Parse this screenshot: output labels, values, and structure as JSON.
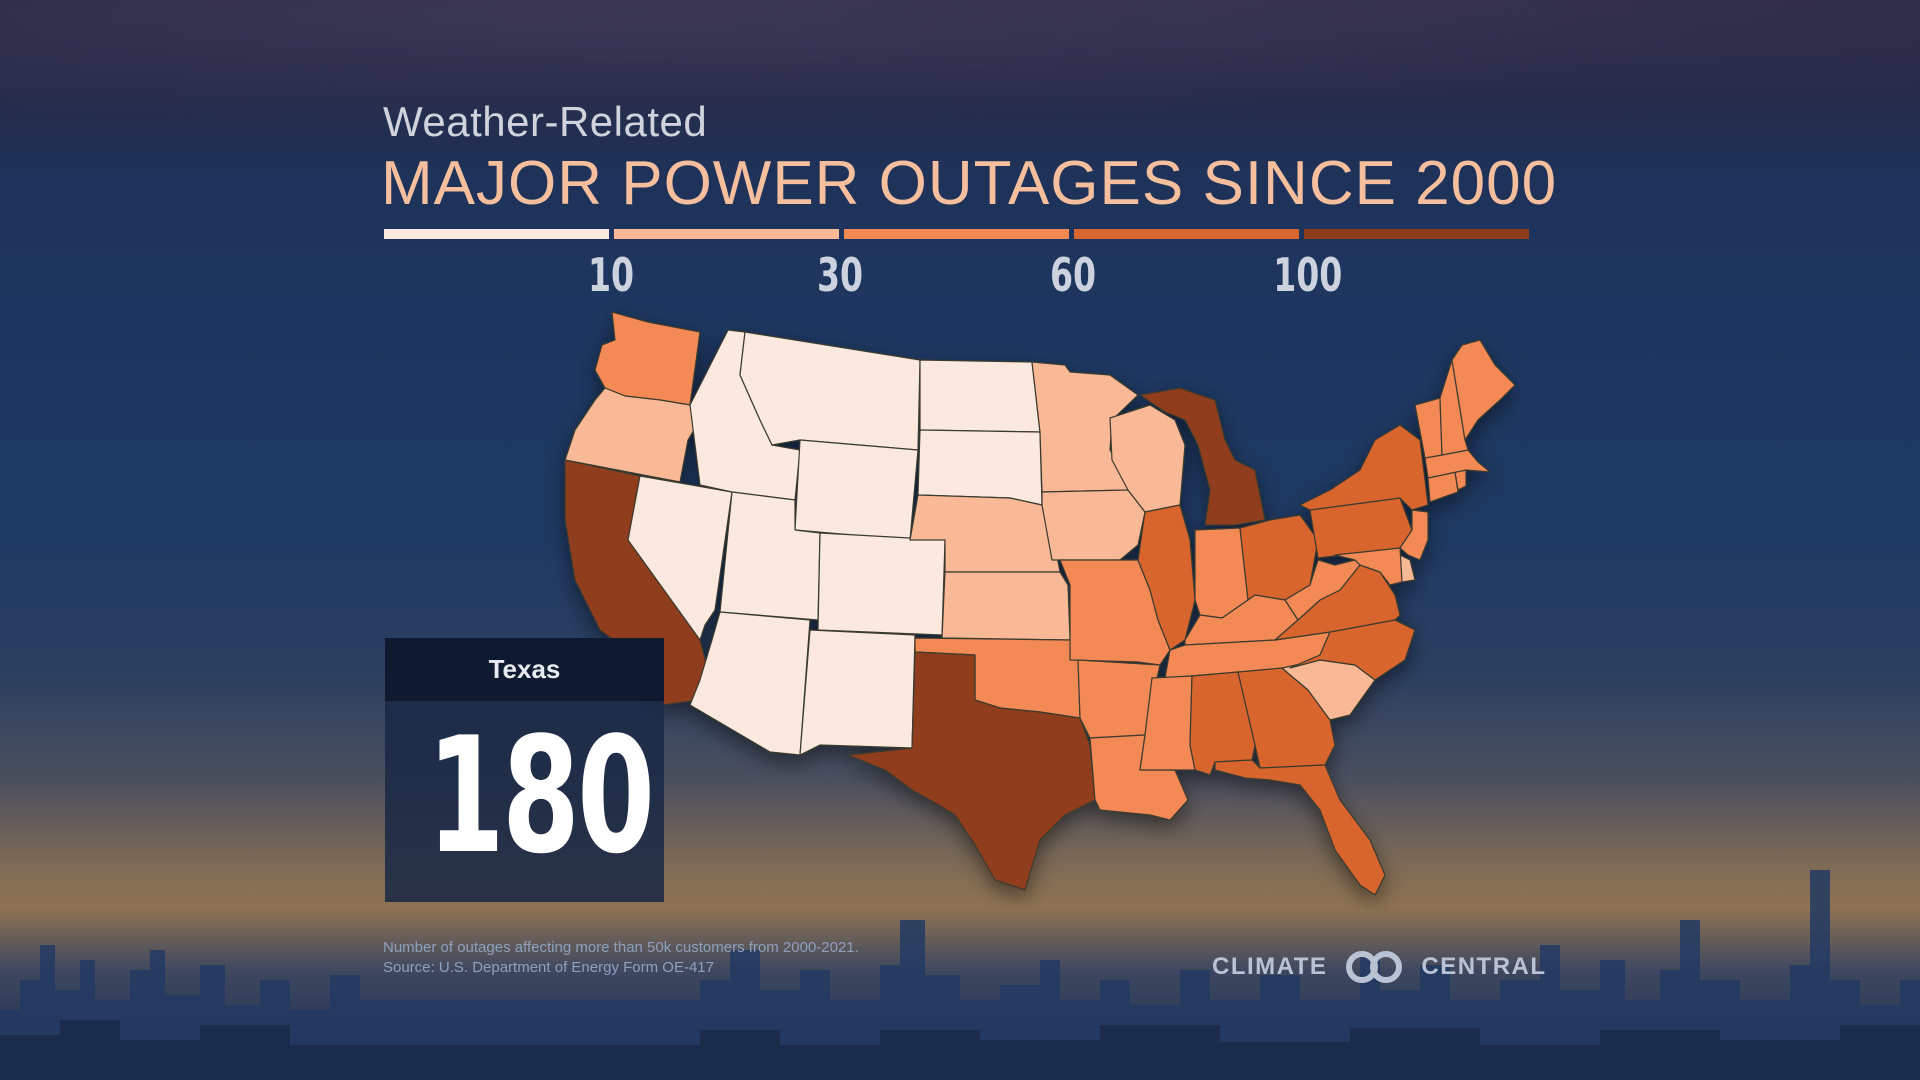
{
  "header": {
    "subtitle": "Weather-Related",
    "title": "MAJOR POWER OUTAGES SINCE 2000"
  },
  "legend": {
    "breaks": [
      "10",
      "30",
      "60",
      "100"
    ],
    "colors": [
      "#fbe9df",
      "#f9b996",
      "#f38a56",
      "#d9652f",
      "#8f3c1c"
    ]
  },
  "callout": {
    "state": "Texas",
    "value": "180"
  },
  "footnote": {
    "line1": "Number of outages affecting more than 50k customers from 2000-2021.",
    "line2": "Source: U.S. Department of Energy Form OE-417"
  },
  "logo": {
    "left_text": "CLIMATE",
    "right_text": "CENTRAL"
  },
  "map_data": {
    "color_class_by_state": {
      "WA": 3,
      "OR": 2,
      "CA": 5,
      "NV": 1,
      "ID": 1,
      "MT": 1,
      "WY": 1,
      "UT": 1,
      "AZ": 1,
      "CO": 1,
      "NM": 1,
      "ND": 1,
      "SD": 1,
      "NE": 2,
      "KS": 2,
      "OK": 3,
      "TX": 5,
      "MN": 2,
      "IA": 2,
      "MO": 3,
      "AR": 3,
      "LA": 3,
      "WI": 2,
      "IL": 4,
      "MI": 5,
      "IN": 3,
      "OH": 4,
      "KY": 3,
      "TN": 3,
      "MS": 3,
      "AL": 4,
      "GA": 4,
      "FL": 4,
      "SC": 2,
      "NC": 4,
      "VA": 4,
      "WV": 3,
      "PA": 4,
      "NY": 4,
      "NJ": 3,
      "DE": 2,
      "MD": 3,
      "CT": 3,
      "RI": 3,
      "MA": 3,
      "VT": 3,
      "NH": 3,
      "ME": 3
    }
  }
}
